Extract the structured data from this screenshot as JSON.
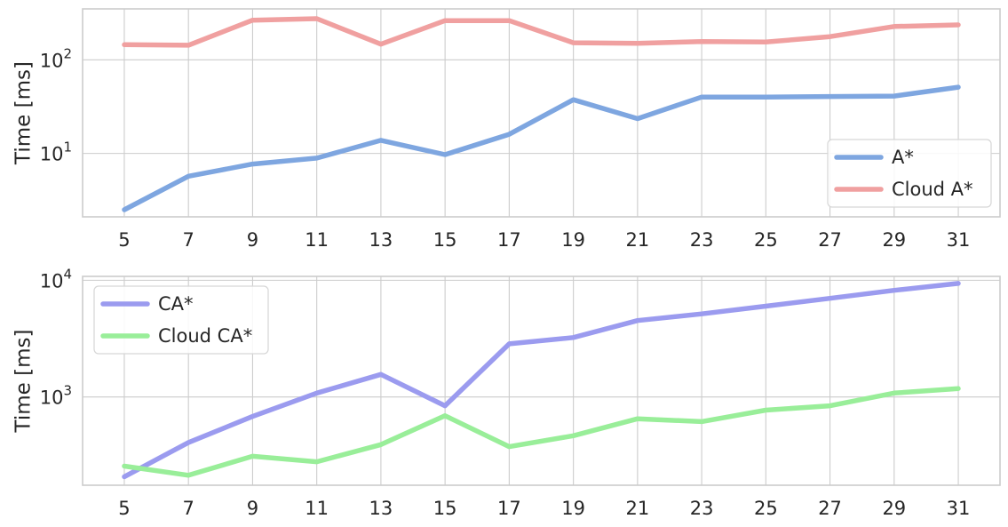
{
  "chart_data": [
    {
      "type": "line",
      "x": [
        5,
        7,
        9,
        11,
        13,
        15,
        17,
        19,
        21,
        23,
        25,
        27,
        29,
        31
      ],
      "xticks": [
        "5",
        "7",
        "9",
        "11",
        "13",
        "15",
        "17",
        "19",
        "21",
        "23",
        "25",
        "27",
        "29",
        "31"
      ],
      "ylabel": "Time [ms]",
      "yscale": "log",
      "ylim": [
        2.1,
        350
      ],
      "yticks": [
        {
          "value": 10,
          "base": "10",
          "exp": "1"
        },
        {
          "value": 100,
          "base": "10",
          "exp": "2"
        }
      ],
      "grid": true,
      "legend_position": "bottom-right",
      "series": [
        {
          "name": "A*",
          "color": "#7ea6e0",
          "values": [
            2.5,
            5.7,
            7.7,
            8.9,
            13.8,
            9.7,
            16.0,
            37.5,
            23.5,
            40.0,
            40.0,
            40.5,
            41.0,
            51.0
          ]
        },
        {
          "name": "Cloud A*",
          "color": "#f0a0a0",
          "values": [
            145,
            143,
            265,
            275,
            147,
            262,
            262,
            152,
            150,
            157,
            155,
            177,
            227,
            236
          ]
        }
      ]
    },
    {
      "type": "line",
      "x": [
        5,
        7,
        9,
        11,
        13,
        15,
        17,
        19,
        21,
        23,
        25,
        27,
        29,
        31
      ],
      "xticks": [
        "5",
        "7",
        "9",
        "11",
        "13",
        "15",
        "17",
        "19",
        "21",
        "23",
        "25",
        "27",
        "29",
        "31"
      ],
      "ylabel": "Time [ms]",
      "yscale": "log",
      "ylim": [
        175,
        10800
      ],
      "yticks": [
        {
          "value": 1000,
          "base": "10",
          "exp": "3"
        },
        {
          "value": 10000,
          "base": "10",
          "exp": "4"
        }
      ],
      "grid": true,
      "legend_position": "top-left",
      "series": [
        {
          "name": "CA*",
          "color": "#9b9bef",
          "values": [
            207,
            407,
            680,
            1080,
            1560,
            840,
            2850,
            3230,
            4520,
            5150,
            6000,
            7000,
            8200,
            9400
          ]
        },
        {
          "name": "Cloud CA*",
          "color": "#99ee99",
          "values": [
            255,
            213,
            310,
            278,
            390,
            690,
            375,
            465,
            650,
            615,
            770,
            840,
            1080,
            1180
          ]
        }
      ]
    }
  ]
}
